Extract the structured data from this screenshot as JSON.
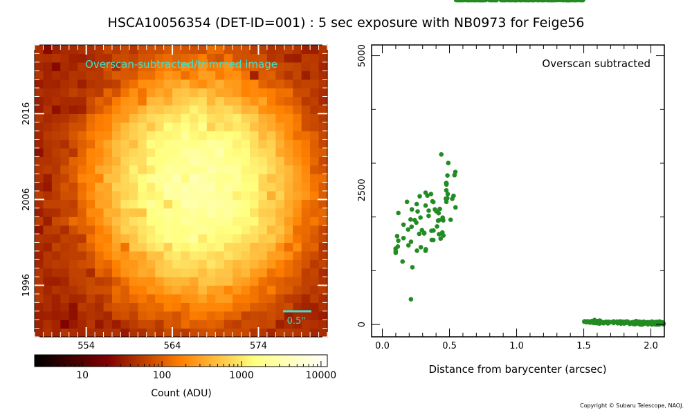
{
  "title": "HSCA10056354 (DET-ID=001) :  5 sec exposure with NB0973 for Feige56",
  "copyright": "Copyright © Subaru Telescope, NAOJ.",
  "colors": {
    "scatter": "#228b22",
    "image_label": "#40e0d0",
    "scale_bar": "#40e0d0"
  },
  "chart_data": [
    {
      "type": "heatmap",
      "title": "Overscan-subtracted/trimmed image",
      "colormap": "afmhot",
      "color_scale": "log",
      "xlim": [
        548,
        582
      ],
      "ylim": [
        1990,
        2024
      ],
      "x_ticks": [
        554,
        564,
        574
      ],
      "y_ticks": [
        1996,
        2006,
        2016
      ],
      "scale_bar_label": "0.5\"",
      "source": {
        "x0": 567,
        "y0": 2007.5,
        "peak_adu": 2700,
        "sigma": 5.2,
        "background_adu": 40
      }
    },
    {
      "type": "colorbar",
      "xlabel": "Count (ADU)",
      "scale": "log",
      "range": [
        2.5,
        12000
      ],
      "tick_labels": [
        "10",
        "100",
        "1000",
        "10000"
      ],
      "tick_values": [
        10,
        100,
        1000,
        10000
      ]
    },
    {
      "type": "scatter",
      "annotation": "Overscan subtracted",
      "xlabel": "Distance from barycenter (arcsec)",
      "ylabel": "",
      "xlim": [
        -0.08,
        2.1
      ],
      "ylim": [
        -230,
        5200
      ],
      "x_ticks": [
        0.0,
        0.5,
        1.0,
        1.5,
        2.0
      ],
      "x_tick_labels": [
        "0.0",
        "0.5",
        "1.0",
        "1.5",
        "2.0"
      ],
      "y_ticks": [
        0,
        2500,
        5000
      ],
      "y_tick_labels": [
        "0",
        "2500",
        "5000"
      ],
      "profile": {
        "sigma_arcsec": 0.45,
        "peak_adu": 2700,
        "points": 420
      }
    }
  ]
}
